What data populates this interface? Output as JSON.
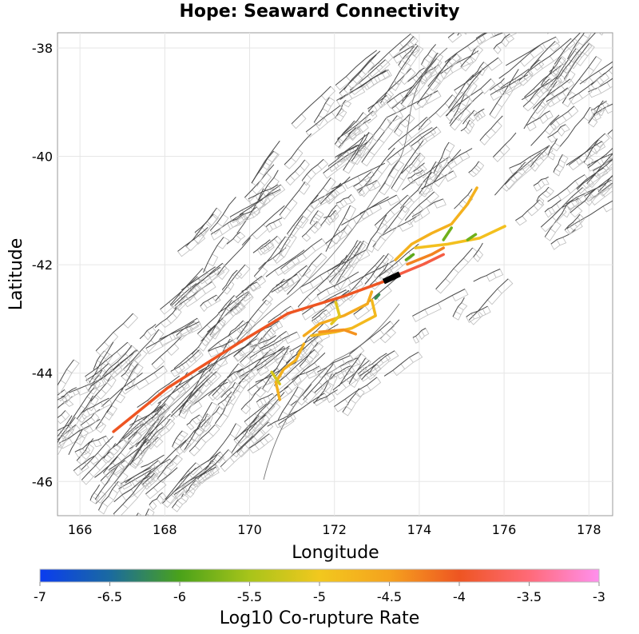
{
  "chart_data": {
    "type": "map",
    "title": "Hope: Seaward Connectivity",
    "xlabel": "Longitude",
    "ylabel": "Latitude",
    "xlim": [
      165.47,
      178.56
    ],
    "ylim": [
      -46.63,
      -37.72
    ],
    "xticks": [
      166,
      168,
      170,
      172,
      174,
      176,
      178
    ],
    "yticks": [
      -38,
      -40,
      -42,
      -44,
      -46
    ],
    "grid": true,
    "colorbar": {
      "label": "Log10 Co-rupture Rate",
      "range": [
        -7,
        -3
      ],
      "ticks": [
        "-7",
        "-6.5",
        "-6",
        "-5.5",
        "-5",
        "-4.5",
        "-4",
        "-3.5",
        "-3"
      ],
      "stops": [
        {
          "value": -7,
          "color": "#0a3cf0"
        },
        {
          "value": -6.5,
          "color": "#1a6aa0"
        },
        {
          "value": -6,
          "color": "#4aa21a"
        },
        {
          "value": -5.5,
          "color": "#a8c41a"
        },
        {
          "value": -5,
          "color": "#f2c81e"
        },
        {
          "value": -4.5,
          "color": "#f5a21e"
        },
        {
          "value": -4,
          "color": "#ee5522"
        },
        {
          "value": -3.5,
          "color": "#ff6a78"
        },
        {
          "value": -3,
          "color": "#ff90ee"
        }
      ]
    },
    "source_section": {
      "name": "Hope: Seaward",
      "color": "#000000",
      "path": [
        [
          173.16,
          -42.31
        ],
        [
          173.54,
          -42.17
        ]
      ]
    },
    "ruptures": [
      {
        "value": -4.0,
        "path": [
          [
            166.79,
            -45.08
          ],
          [
            168.07,
            -44.27
          ],
          [
            169.77,
            -43.43
          ],
          [
            170.9,
            -42.9
          ],
          [
            172.22,
            -42.58
          ],
          [
            173.16,
            -42.31
          ]
        ]
      },
      {
        "value": -3.8,
        "path": [
          [
            173.54,
            -42.17
          ],
          [
            174.1,
            -41.99
          ],
          [
            174.57,
            -41.81
          ]
        ]
      },
      {
        "value": -4.7,
        "path": [
          [
            173.44,
            -41.91
          ],
          [
            173.82,
            -41.62
          ],
          [
            174.29,
            -41.42
          ],
          [
            174.76,
            -41.25
          ],
          [
            175.14,
            -40.88
          ],
          [
            175.36,
            -40.58
          ]
        ]
      },
      {
        "value": -4.9,
        "path": [
          [
            173.91,
            -41.69
          ],
          [
            174.67,
            -41.62
          ],
          [
            175.42,
            -41.51
          ],
          [
            176.02,
            -41.29
          ]
        ]
      },
      {
        "value": -4.3,
        "path": [
          [
            173.72,
            -41.99
          ],
          [
            174.29,
            -41.81
          ],
          [
            174.57,
            -41.69
          ]
        ]
      },
      {
        "value": -5.8,
        "path": [
          [
            174.57,
            -41.54
          ],
          [
            174.76,
            -41.32
          ]
        ]
      },
      {
        "value": -5.8,
        "path": [
          [
            175.14,
            -41.54
          ],
          [
            175.33,
            -41.44
          ]
        ]
      },
      {
        "value": -5.9,
        "path": [
          [
            173.69,
            -41.91
          ],
          [
            173.86,
            -41.81
          ]
        ]
      },
      {
        "value": -4.6,
        "path": [
          [
            171.28,
            -43.31
          ],
          [
            171.65,
            -43.09
          ],
          [
            172.22,
            -42.94
          ],
          [
            172.78,
            -42.72
          ],
          [
            172.88,
            -42.5
          ]
        ]
      },
      {
        "value": -4.8,
        "path": [
          [
            171.46,
            -43.31
          ],
          [
            172.03,
            -43.24
          ],
          [
            172.41,
            -43.17
          ],
          [
            172.97,
            -42.94
          ],
          [
            172.88,
            -42.65
          ]
        ]
      },
      {
        "value": -4.7,
        "path": [
          [
            171.28,
            -43.46
          ],
          [
            171.09,
            -43.76
          ],
          [
            170.8,
            -43.93
          ],
          [
            170.62,
            -44.17
          ],
          [
            170.71,
            -44.49
          ]
        ]
      },
      {
        "value": -5.2,
        "path": [
          [
            170.52,
            -43.98
          ],
          [
            170.71,
            -44.2
          ]
        ]
      },
      {
        "value": -5.1,
        "path": [
          [
            172.03,
            -42.69
          ],
          [
            172.12,
            -42.94
          ],
          [
            171.93,
            -43.09
          ]
        ]
      },
      {
        "value": -4.4,
        "path": [
          [
            171.65,
            -43.24
          ],
          [
            172.22,
            -43.2
          ],
          [
            172.5,
            -43.28
          ]
        ]
      },
      {
        "value": -6.2,
        "path": [
          [
            172.97,
            -42.62
          ],
          [
            173.05,
            -42.55
          ]
        ]
      }
    ]
  }
}
